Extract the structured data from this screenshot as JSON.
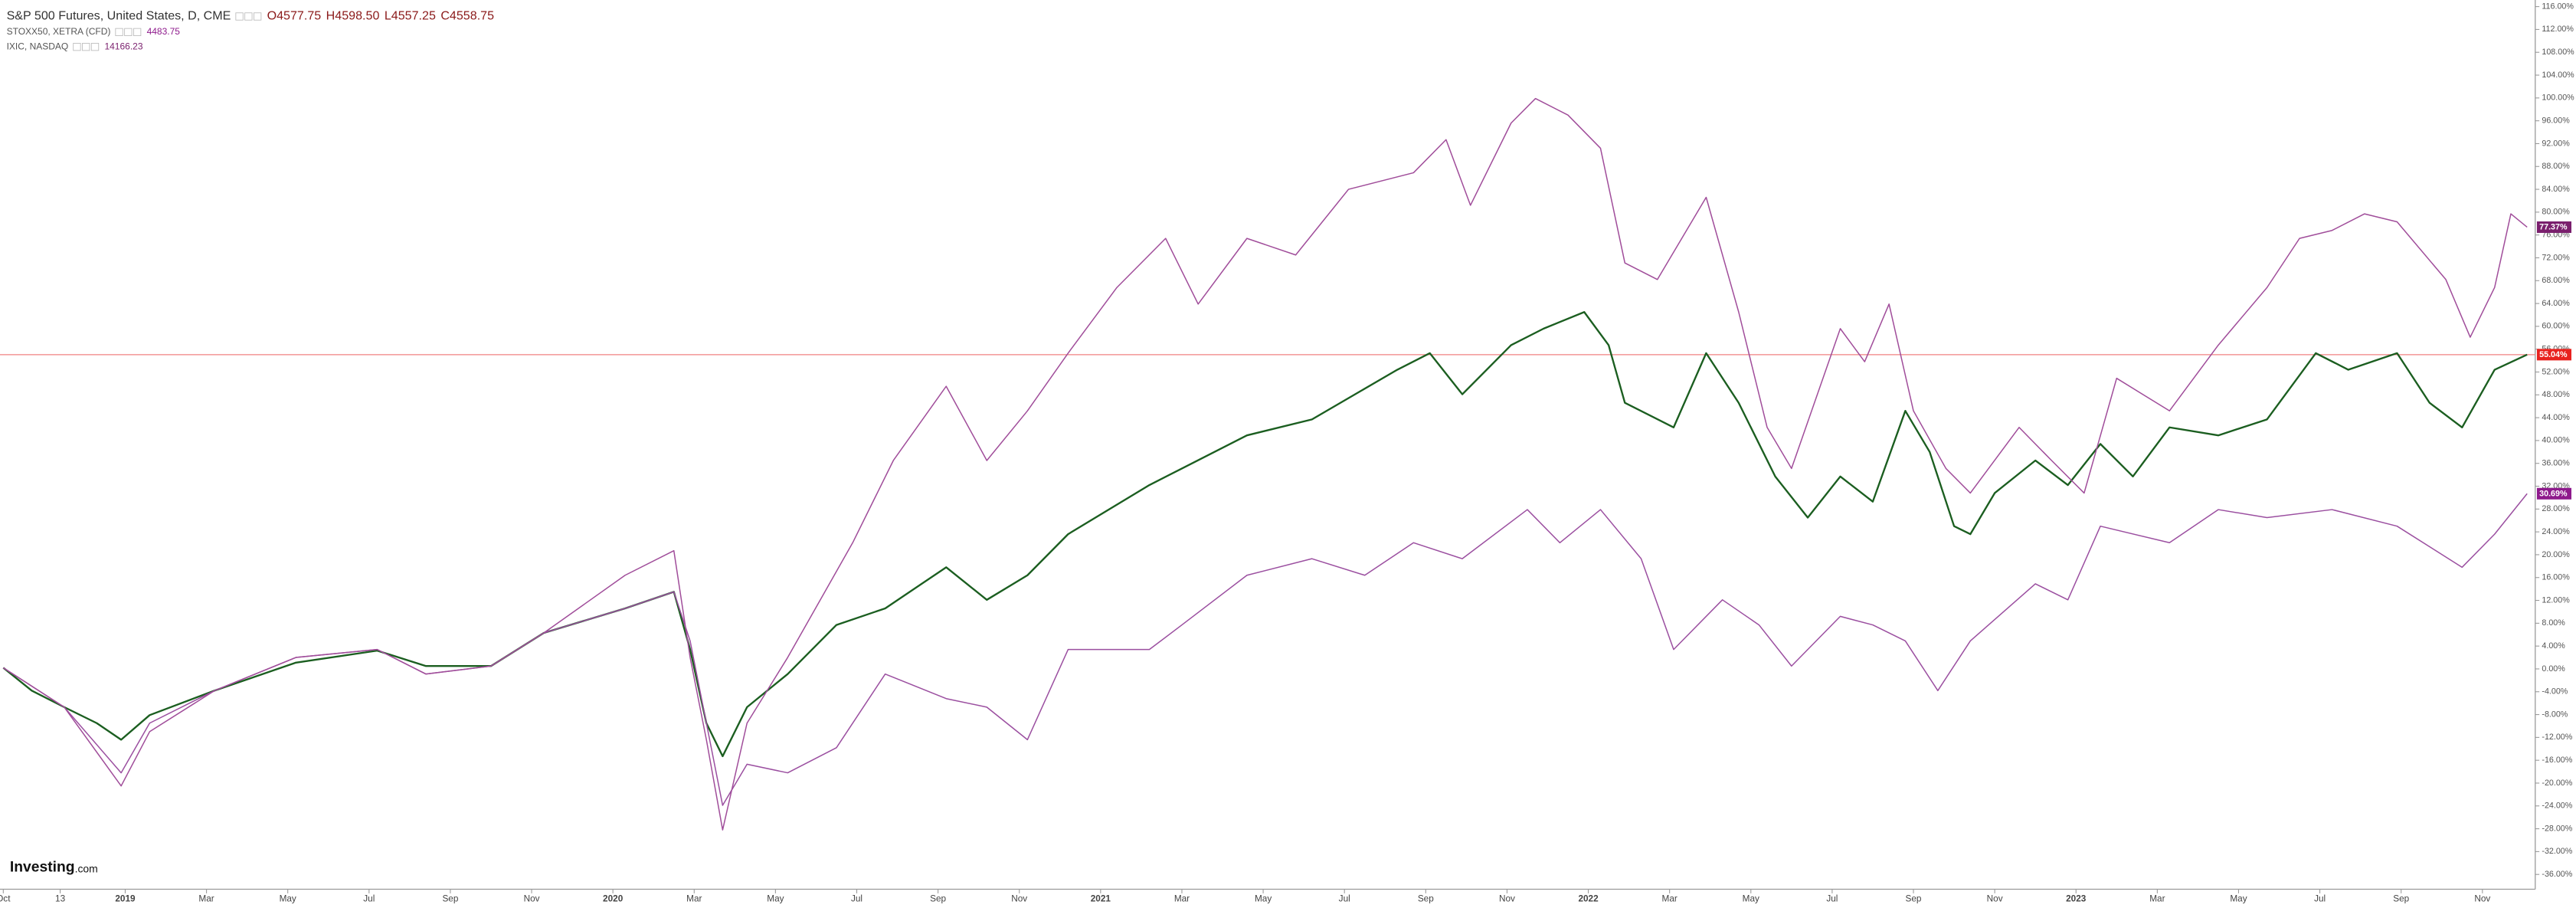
{
  "chart_data": {
    "type": "line",
    "ohlc": [
      "O4577.75",
      "H4598.50",
      "L4557.25",
      "C4558.75"
    ],
    "logo": [
      "Investing",
      ".com"
    ],
    "grid": false,
    "xlim": [
      0,
      62.3
    ],
    "ylim": [
      -36,
      116
    ],
    "xticks": [
      {
        "value": 0,
        "label": "Oct"
      },
      {
        "value": 1.4,
        "label": "13"
      },
      {
        "value": 3,
        "label": "2019"
      },
      {
        "value": 5,
        "label": "Mar"
      },
      {
        "value": 7,
        "label": "May"
      },
      {
        "value": 9,
        "label": "Jul"
      },
      {
        "value": 11,
        "label": "Sep"
      },
      {
        "value": 13,
        "label": "Nov"
      },
      {
        "value": 15,
        "label": "2020"
      },
      {
        "value": 17,
        "label": "Mar"
      },
      {
        "value": 19,
        "label": "May"
      },
      {
        "value": 21,
        "label": "Jul"
      },
      {
        "value": 23,
        "label": "Sep"
      },
      {
        "value": 25,
        "label": "Nov"
      },
      {
        "value": 27,
        "label": "2021"
      },
      {
        "value": 29,
        "label": "Mar"
      },
      {
        "value": 31,
        "label": "May"
      },
      {
        "value": 33,
        "label": "Jul"
      },
      {
        "value": 35,
        "label": "Sep"
      },
      {
        "value": 37,
        "label": "Nov"
      },
      {
        "value": 39,
        "label": "2022"
      },
      {
        "value": 41,
        "label": "Mar"
      },
      {
        "value": 43,
        "label": "May"
      },
      {
        "value": 45,
        "label": "Jul"
      },
      {
        "value": 47,
        "label": "Sep"
      },
      {
        "value": 49,
        "label": "Nov"
      },
      {
        "value": 51,
        "label": "2023"
      },
      {
        "value": 53,
        "label": "Mar"
      },
      {
        "value": 55,
        "label": "May"
      },
      {
        "value": 57,
        "label": "Jul"
      },
      {
        "value": 59,
        "label": "Sep"
      },
      {
        "value": 61,
        "label": "Nov"
      }
    ],
    "yticks": [
      {
        "value": 116,
        "label": "116.00%"
      },
      {
        "value": 112,
        "label": "112.00%"
      },
      {
        "value": 108,
        "label": "108.00%"
      },
      {
        "value": 104,
        "label": "104.00%"
      },
      {
        "value": 100,
        "label": "100.00%"
      },
      {
        "value": 96,
        "label": "96.00%"
      },
      {
        "value": 92,
        "label": "92.00%"
      },
      {
        "value": 88,
        "label": "88.00%"
      },
      {
        "value": 84,
        "label": "84.00%"
      },
      {
        "value": 80,
        "label": "80.00%"
      },
      {
        "value": 76,
        "label": "76.00%"
      },
      {
        "value": 72,
        "label": "72.00%"
      },
      {
        "value": 68,
        "label": "68.00%"
      },
      {
        "value": 64,
        "label": "64.00%"
      },
      {
        "value": 60,
        "label": "60.00%"
      },
      {
        "value": 56,
        "label": "56.00%"
      },
      {
        "value": 52,
        "label": "52.00%"
      },
      {
        "value": 48,
        "label": "48.00%"
      },
      {
        "value": 44,
        "label": "44.00%"
      },
      {
        "value": 40,
        "label": "40.00%"
      },
      {
        "value": 36,
        "label": "36.00%"
      },
      {
        "value": 32,
        "label": "32.00%"
      },
      {
        "value": 28,
        "label": "28.00%"
      },
      {
        "value": 24,
        "label": "24.00%"
      },
      {
        "value": 20,
        "label": "20.00%"
      },
      {
        "value": 16,
        "label": "16.00%"
      },
      {
        "value": 12,
        "label": "12.00%"
      },
      {
        "value": 8,
        "label": "8.00%"
      },
      {
        "value": 4,
        "label": "4.00%"
      },
      {
        "value": 0,
        "label": "0.00%"
      },
      {
        "value": -4,
        "label": "-4.00%"
      },
      {
        "value": -8,
        "label": "-8.00%"
      },
      {
        "value": -12,
        "label": "-12.00%"
      },
      {
        "value": -16,
        "label": "-16.00%"
      },
      {
        "value": -20,
        "label": "-20.00%"
      },
      {
        "value": -24,
        "label": "-24.00%"
      },
      {
        "value": -28,
        "label": "-28.00%"
      },
      {
        "value": -32,
        "label": "-32.00%"
      },
      {
        "value": -36,
        "label": "-36.00%"
      }
    ],
    "series": [
      {
        "name": "S&P 500 Futures, United States, D, CME",
        "color": "#1b5e20",
        "last_label": "55.04%",
        "label_color": "#e8221f",
        "price_line": true,
        "x": [
          0,
          0.7,
          1.5,
          2.3,
          2.9,
          3.6,
          5.2,
          7.2,
          9.2,
          10.4,
          12.0,
          13.3,
          15.3,
          16.5,
          16.9,
          17.3,
          17.7,
          18.3,
          19.3,
          20.5,
          21.7,
          23.2,
          24.2,
          25.2,
          26.2,
          28.2,
          29.0,
          30.6,
          32.2,
          34.3,
          35.1,
          35.9,
          37.1,
          37.9,
          38.9,
          39.5,
          39.9,
          41.1,
          41.9,
          42.7,
          43.6,
          44.4,
          45.2,
          46.0,
          46.8,
          47.4,
          48.0,
          48.4,
          49.0,
          50.0,
          50.8,
          51.6,
          52.4,
          53.3,
          54.5,
          55.7,
          56.9,
          57.7,
          58.9,
          59.7,
          60.5,
          61.3,
          62.1
        ],
        "values": [
          0.2,
          -3.8,
          -6.7,
          -9.5,
          -12.4,
          -8.1,
          -3.8,
          1.1,
          3.2,
          0.5,
          0.5,
          6.3,
          10.6,
          13.5,
          3.4,
          -9.5,
          -15.3,
          -6.7,
          -0.9,
          7.7,
          10.6,
          17.8,
          12.1,
          16.4,
          23.6,
          32.2,
          35.1,
          40.9,
          43.7,
          52.4,
          55.3,
          48.1,
          56.7,
          59.6,
          62.5,
          56.7,
          46.6,
          42.3,
          55.3,
          46.6,
          33.7,
          26.5,
          33.7,
          29.3,
          45.2,
          38.0,
          25.0,
          23.6,
          30.8,
          36.5,
          32.2,
          39.4,
          33.7,
          42.3,
          40.9,
          43.7,
          55.3,
          52.4,
          55.3,
          46.6,
          42.3,
          52.4,
          55.04
        ]
      },
      {
        "name": "STOXX50, XETRA (CFD)",
        "quote": "4483.75",
        "color": "#9b4fa0",
        "last_label": "30.69%",
        "label_color": "#8e1a8c",
        "x": [
          0,
          1.5,
          2.9,
          3.6,
          5.2,
          7.2,
          9.2,
          10.4,
          12.0,
          13.3,
          15.3,
          16.5,
          16.9,
          17.3,
          17.7,
          18.3,
          19.3,
          20.5,
          21.7,
          23.2,
          24.2,
          25.2,
          26.2,
          28.2,
          29.0,
          30.6,
          32.2,
          33.5,
          34.7,
          35.9,
          37.5,
          38.3,
          39.3,
          40.3,
          41.1,
          42.3,
          43.2,
          44.0,
          45.2,
          46.0,
          46.8,
          47.6,
          48.4,
          50.0,
          50.8,
          51.6,
          53.3,
          54.5,
          55.7,
          57.3,
          58.9,
          60.5,
          61.3,
          62.1
        ],
        "values": [
          0.2,
          -6.7,
          -18.2,
          -9.5,
          -3.8,
          2.0,
          3.4,
          -0.9,
          0.5,
          6.3,
          10.6,
          13.5,
          4.9,
          -9.5,
          -23.9,
          -16.7,
          -18.2,
          -13.8,
          -0.9,
          -5.2,
          -6.7,
          -12.4,
          3.4,
          3.4,
          7.7,
          16.4,
          19.3,
          16.4,
          22.1,
          19.3,
          27.9,
          22.1,
          27.9,
          19.3,
          3.4,
          12.1,
          7.7,
          0.5,
          9.2,
          7.7,
          4.9,
          -3.8,
          4.9,
          14.9,
          12.1,
          25.0,
          22.1,
          27.9,
          26.5,
          27.9,
          25.0,
          17.8,
          23.6,
          30.69
        ]
      },
      {
        "name": "IXIC, NASDAQ",
        "quote": "14166.23",
        "color": "#a04d9a",
        "last_label": "77.37%",
        "label_color": "#7a1f6d",
        "x": [
          0,
          1.5,
          2.9,
          3.6,
          5.2,
          7.2,
          9.2,
          10.4,
          12.0,
          13.3,
          15.3,
          16.5,
          16.9,
          17.3,
          17.7,
          18.3,
          19.3,
          20.9,
          21.9,
          23.2,
          24.2,
          25.2,
          26.2,
          27.4,
          28.6,
          29.4,
          30.6,
          31.8,
          33.1,
          34.7,
          35.5,
          36.1,
          37.1,
          37.7,
          38.5,
          39.3,
          39.9,
          40.7,
          41.9,
          42.7,
          43.4,
          44.0,
          45.2,
          45.8,
          46.4,
          47.0,
          47.8,
          48.4,
          49.6,
          50.4,
          51.2,
          52.0,
          53.3,
          54.5,
          55.7,
          56.5,
          57.3,
          58.1,
          58.9,
          60.1,
          60.7,
          61.3,
          61.7,
          62.1
        ],
        "values": [
          0.2,
          -6.7,
          -20.5,
          -11.0,
          -3.8,
          2.0,
          3.4,
          -0.9,
          0.5,
          6.3,
          16.4,
          20.7,
          2.0,
          -12.4,
          -28.2,
          -9.5,
          2.0,
          22.1,
          36.5,
          49.5,
          36.5,
          45.2,
          55.3,
          66.8,
          75.4,
          63.9,
          75.4,
          72.5,
          84.0,
          86.9,
          92.7,
          81.2,
          95.6,
          99.9,
          97.0,
          91.2,
          71.1,
          68.2,
          82.6,
          62.5,
          42.3,
          35.1,
          59.6,
          53.8,
          63.9,
          45.2,
          35.1,
          30.8,
          42.3,
          36.5,
          30.8,
          50.9,
          45.2,
          56.7,
          66.8,
          75.4,
          76.8,
          79.7,
          78.3,
          68.2,
          58.1,
          66.8,
          79.7,
          77.37
        ]
      }
    ]
  }
}
